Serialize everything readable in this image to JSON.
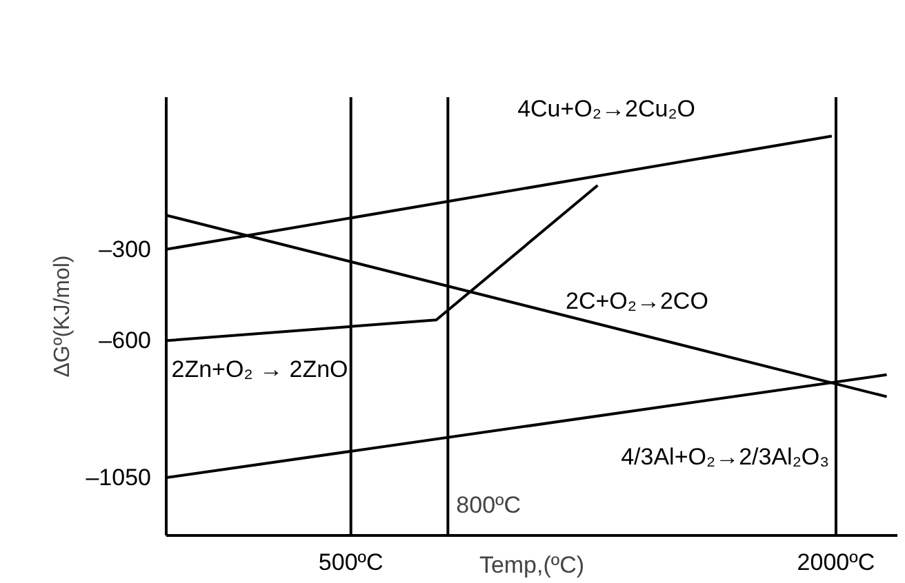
{
  "chart_data": {
    "type": "line",
    "xlabel": "Temp,(ºC)",
    "ylabel": "ΔGº(KJ/mol)",
    "xlim": [
      -71,
      2190
    ],
    "ylim": [
      -1240,
      200
    ],
    "xticks": [
      {
        "value": 500,
        "label": "500ºC"
      },
      {
        "value": 2000,
        "label": "2000ºC"
      }
    ],
    "yticks": [
      {
        "value": -300,
        "label": "–300"
      },
      {
        "value": -600,
        "label": "–600"
      },
      {
        "value": -1050,
        "label": "–1050"
      }
    ],
    "grid": false,
    "legend": false,
    "marker": "none",
    "line_style": "solid",
    "series": [
      {
        "name": "4Cu+O₂→2Cu₂O",
        "color": "#000000",
        "x": [
          -71,
          1987
        ],
        "values": [
          -300,
          72
        ]
      },
      {
        "name": "2C+O₂→2CO",
        "color": "#000000",
        "x": [
          -71,
          2157
        ],
        "values": [
          -188,
          -784
        ]
      },
      {
        "name": "2Zn+O₂ → 2ZnO",
        "color": "#000000",
        "x": [
          -71,
          764,
          1263
        ],
        "values": [
          -600,
          -532,
          -90
        ]
      },
      {
        "name": "4/3Al+O₂→2/3Al₂O₃",
        "color": "#000000",
        "x": [
          -71,
          2157
        ],
        "values": [
          -1050,
          -712
        ]
      }
    ],
    "ref_lines": [
      {
        "axis": "x",
        "value": 500,
        "label": null,
        "color": "#000000"
      },
      {
        "axis": "x",
        "value": 800,
        "label": "800ºC",
        "color": "#000000"
      },
      {
        "axis": "x",
        "value": 2000,
        "label": null,
        "color": "#000000"
      }
    ]
  }
}
